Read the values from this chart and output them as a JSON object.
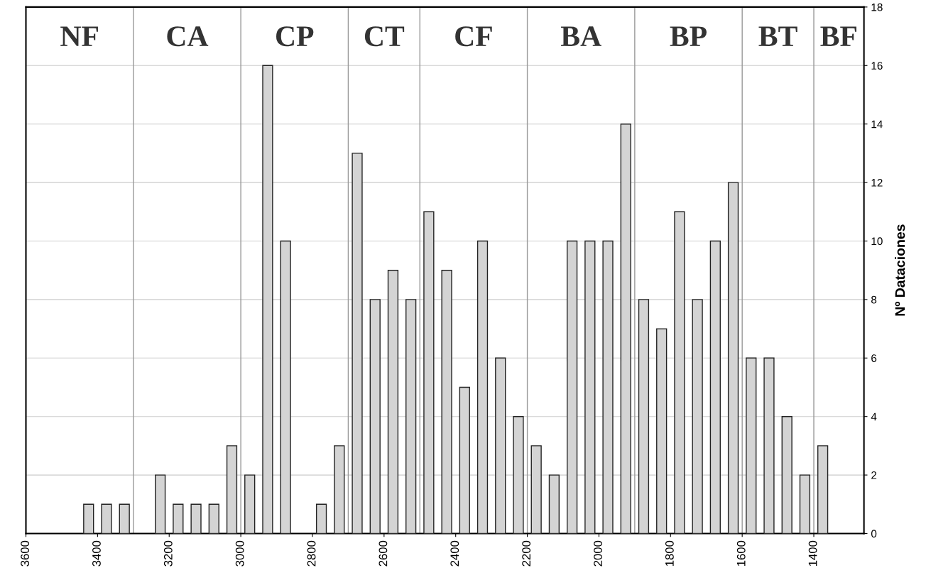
{
  "chart_data": {
    "type": "bar",
    "x": [
      3425,
      3375,
      3325,
      3225,
      3175,
      3125,
      3075,
      3025,
      2975,
      2925,
      2875,
      2775,
      2725,
      2675,
      2625,
      2575,
      2525,
      2475,
      2425,
      2375,
      2325,
      2275,
      2225,
      2175,
      2125,
      2075,
      2025,
      1975,
      1925,
      1875,
      1825,
      1775,
      1725,
      1675,
      1625,
      1575,
      1525,
      1475,
      1425,
      1375
    ],
    "values": [
      1,
      1,
      1,
      2,
      1,
      1,
      1,
      3,
      2,
      16,
      10,
      1,
      3,
      13,
      8,
      9,
      8,
      11,
      9,
      5,
      10,
      6,
      4,
      3,
      2,
      10,
      10,
      10,
      14,
      8,
      7,
      11,
      8,
      10,
      12,
      6,
      6,
      4,
      2,
      3
    ],
    "color": "#d4d4d4",
    "ylabel": "Nº Dataciones",
    "xlim": [
      3600,
      1260
    ],
    "xticks": [
      3600,
      3400,
      3200,
      3000,
      2800,
      2600,
      2400,
      2200,
      2000,
      1800,
      1600,
      1400
    ],
    "ylim": [
      0,
      18
    ],
    "yticks": [
      0,
      2,
      4,
      6,
      8,
      10,
      12,
      14,
      16,
      18
    ],
    "grid": "y",
    "ref_lines": [
      {
        "axis": "x",
        "value": 3300,
        "color": "#999999"
      },
      {
        "axis": "x",
        "value": 3000,
        "color": "#999999"
      },
      {
        "axis": "x",
        "value": 2700,
        "color": "#999999"
      },
      {
        "axis": "x",
        "value": 2500,
        "color": "#999999"
      },
      {
        "axis": "x",
        "value": 2200,
        "color": "#999999"
      },
      {
        "axis": "x",
        "value": 1900,
        "color": "#999999"
      },
      {
        "axis": "x",
        "value": 1600,
        "color": "#999999"
      },
      {
        "axis": "x",
        "value": 1400,
        "color": "#999999"
      }
    ],
    "annotations": [
      "NF",
      "CA",
      "CP",
      "CT",
      "CF",
      "BA",
      "BP",
      "BT",
      "BF"
    ]
  }
}
